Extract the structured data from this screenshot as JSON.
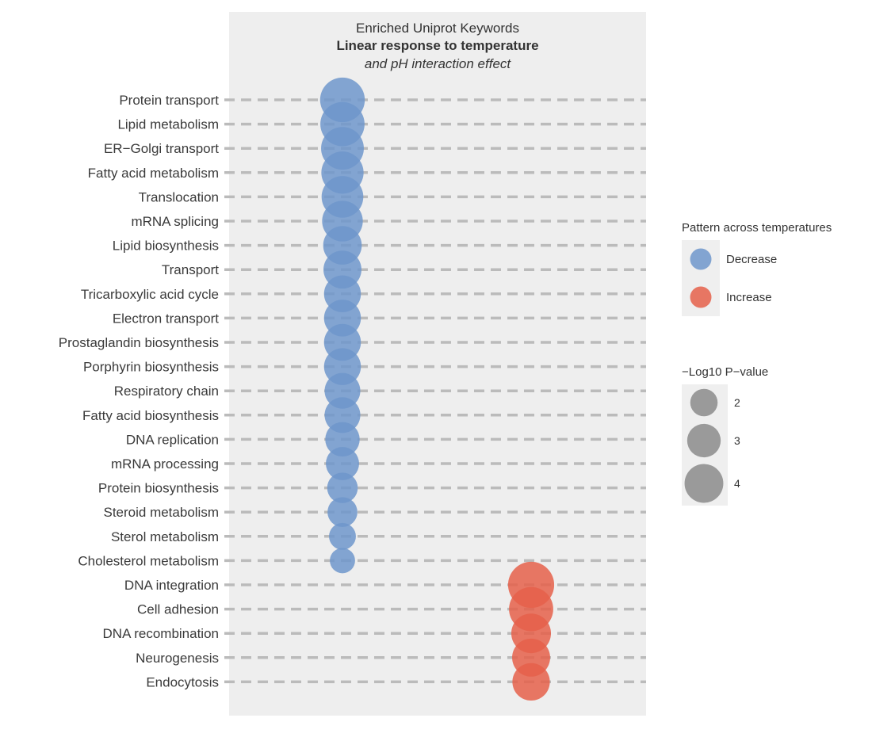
{
  "chart_data": {
    "type": "scatter",
    "title_lines": [
      {
        "text": "Enriched Uniprot Keywords",
        "style": "normal"
      },
      {
        "text": "Linear response to temperature",
        "style": "bold"
      },
      {
        "text": "and pH interaction effect",
        "style": "italic"
      }
    ],
    "xlabel": "",
    "ylabel": "",
    "grid": true,
    "colors": {
      "panel_bg": "#eeeeee",
      "gridline": "#bbbbbb",
      "decrease": "#6f97cb",
      "increase": "#e5604a",
      "size_key": "#9a9a9a",
      "legend_bg": "#efefef"
    },
    "categories": [
      "Protein transport",
      "Lipid metabolism",
      "ER−Golgi transport",
      "Fatty acid metabolism",
      "Translocation",
      "mRNA splicing",
      "Lipid biosynthesis",
      "Transport",
      "Tricarboxylic acid cycle",
      "Electron transport",
      "Prostaglandin biosynthesis",
      "Porphyrin biosynthesis",
      "Respiratory chain",
      "Fatty acid biosynthesis",
      "DNA replication",
      "mRNA processing",
      "Protein biosynthesis",
      "Steroid metabolism",
      "Sterol metabolism",
      "Cholesterol metabolism",
      "DNA integration",
      "Cell adhesion",
      "DNA recombination",
      "Neurogenesis",
      "Endocytosis"
    ],
    "points": [
      {
        "category": "Protein transport",
        "pattern": "Decrease",
        "neg_log10_p": 4.7
      },
      {
        "category": "Lipid metabolism",
        "pattern": "Decrease",
        "neg_log10_p": 4.6
      },
      {
        "category": "ER−Golgi transport",
        "pattern": "Decrease",
        "neg_log10_p": 4.3
      },
      {
        "category": "Fatty acid metabolism",
        "pattern": "Decrease",
        "neg_log10_p": 4.2
      },
      {
        "category": "Translocation",
        "pattern": "Decrease",
        "neg_log10_p": 4.1
      },
      {
        "category": "mRNA splicing",
        "pattern": "Decrease",
        "neg_log10_p": 3.9
      },
      {
        "category": "Lipid biosynthesis",
        "pattern": "Decrease",
        "neg_log10_p": 3.5
      },
      {
        "category": "Transport",
        "pattern": "Decrease",
        "neg_log10_p": 3.4
      },
      {
        "category": "Tricarboxylic acid cycle",
        "pattern": "Decrease",
        "neg_log10_p": 3.2
      },
      {
        "category": "Electron transport",
        "pattern": "Decrease",
        "neg_log10_p": 3.2
      },
      {
        "category": "Prostaglandin biosynthesis",
        "pattern": "Decrease",
        "neg_log10_p": 3.2
      },
      {
        "category": "Porphyrin biosynthesis",
        "pattern": "Decrease",
        "neg_log10_p": 3.2
      },
      {
        "category": "Respiratory chain",
        "pattern": "Decrease",
        "neg_log10_p": 3.0
      },
      {
        "category": "Fatty acid biosynthesis",
        "pattern": "Decrease",
        "neg_log10_p": 3.0
      },
      {
        "category": "DNA replication",
        "pattern": "Decrease",
        "neg_log10_p": 2.8
      },
      {
        "category": "mRNA processing",
        "pattern": "Decrease",
        "neg_log10_p": 2.6
      },
      {
        "category": "Protein biosynthesis",
        "pattern": "Decrease",
        "neg_log10_p": 2.2
      },
      {
        "category": "Steroid metabolism",
        "pattern": "Decrease",
        "neg_log10_p": 2.1
      },
      {
        "category": "Sterol metabolism",
        "pattern": "Decrease",
        "neg_log10_p": 1.7
      },
      {
        "category": "Cholesterol metabolism",
        "pattern": "Decrease",
        "neg_log10_p": 1.5
      },
      {
        "category": "DNA integration",
        "pattern": "Increase",
        "neg_log10_p": 5.0
      },
      {
        "category": "Cell adhesion",
        "pattern": "Increase",
        "neg_log10_p": 4.6
      },
      {
        "category": "DNA recombination",
        "pattern": "Increase",
        "neg_log10_p": 3.7
      },
      {
        "category": "Neurogenesis",
        "pattern": "Increase",
        "neg_log10_p": 3.4
      },
      {
        "category": "Endocytosis",
        "pattern": "Increase",
        "neg_log10_p": 3.3
      }
    ],
    "color_legend": {
      "title": "Pattern across temperatures",
      "placement": "right",
      "items": [
        {
          "label": "Decrease",
          "pattern": "Decrease"
        },
        {
          "label": "Increase",
          "pattern": "Increase"
        }
      ]
    },
    "size_legend": {
      "title": "−Log10 P−value",
      "placement": "right",
      "items": [
        {
          "label": "2",
          "value": 2
        },
        {
          "label": "3",
          "value": 3
        },
        {
          "label": "4",
          "value": 4
        }
      ]
    }
  }
}
